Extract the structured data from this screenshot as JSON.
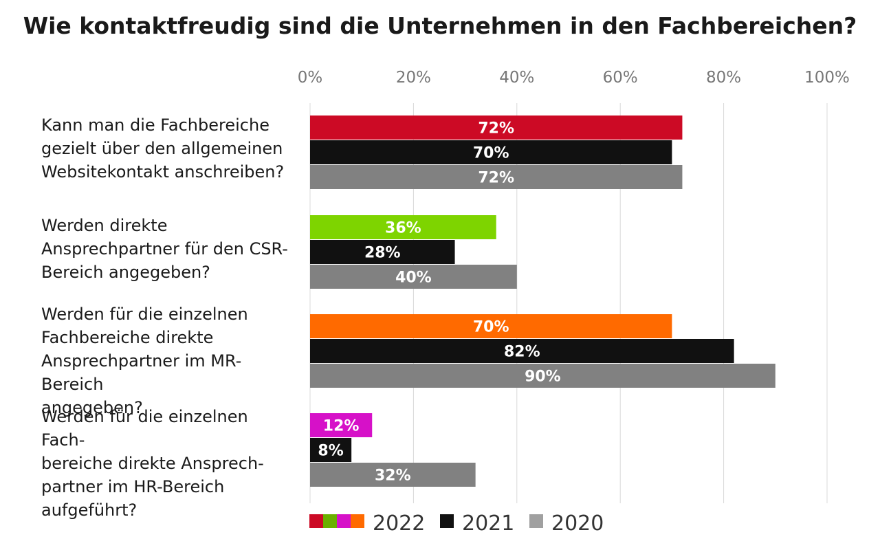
{
  "chart_data": {
    "type": "bar",
    "orientation": "horizontal",
    "title": "Wie kontaktfreudig sind die Unternehmen in den Fachbereichen?",
    "xlim": [
      0,
      100
    ],
    "x_ticks": [
      0,
      20,
      40,
      60,
      80,
      100
    ],
    "x_tick_labels": [
      "0%",
      "20%",
      "40%",
      "60%",
      "80%",
      "100%"
    ],
    "grid": true,
    "legend_position": "bottom",
    "categories": [
      "Kann man die Fachbereiche\ngezielt über den allgemeinen\nWebsitekontakt anschreiben?",
      "Werden direkte\nAnsprechpartner für den CSR-\nBereich angegeben?",
      "Werden für die einzelnen\nFachbereiche direkte\nAnsprechpartner im MR-Bereich\nangegeben?",
      "Werden für die einzelnen Fach-\nbereiche direkte Ansprech-\npartner im HR-Bereich\naufgeführt?"
    ],
    "series": [
      {
        "name": "2022",
        "values": [
          72,
          36,
          70,
          12
        ],
        "labels": [
          "72%",
          "36%",
          "70%",
          "12%"
        ],
        "colors": [
          "#cc0a25",
          "#7ed400",
          "#ff6a00",
          "#d611c8"
        ]
      },
      {
        "name": "2021",
        "values": [
          70,
          28,
          82,
          8
        ],
        "labels": [
          "70%",
          "28%",
          "82%",
          "8%"
        ],
        "colors": [
          "#111111",
          "#111111",
          "#111111",
          "#111111"
        ]
      },
      {
        "name": "2020",
        "values": [
          72,
          40,
          90,
          32
        ],
        "labels": [
          "72%",
          "40%",
          "90%",
          "32%"
        ],
        "colors": [
          "#818181",
          "#818181",
          "#818181",
          "#818181"
        ]
      }
    ],
    "legend": [
      {
        "label": "2022",
        "swatches": [
          "#cc0a25",
          "#6ab000",
          "#d611c8",
          "#ff6a00"
        ]
      },
      {
        "label": "2021",
        "swatches": [
          "#111111"
        ]
      },
      {
        "label": "2020",
        "swatches": [
          "#a0a0a0"
        ]
      }
    ],
    "colors": {
      "grid": "#d9d9d9",
      "tick_text": "#777777",
      "bar_label": "#ffffff",
      "legend_text": "#333333"
    }
  }
}
